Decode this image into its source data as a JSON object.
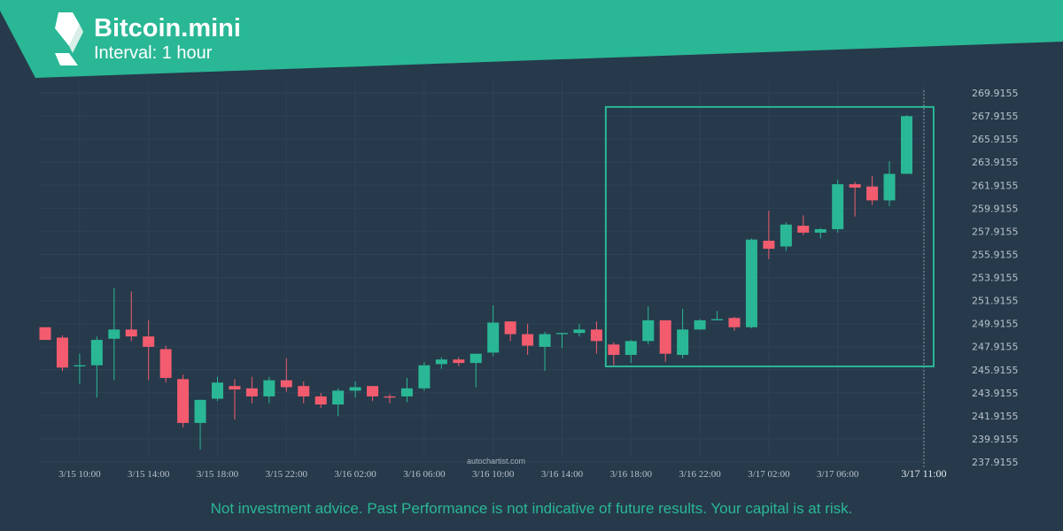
{
  "header": {
    "title": "Bitcoin.mini",
    "interval": "Interval: 1 hour"
  },
  "watermark": "autochartist.com",
  "disclaimer": "Not investment advice. Past Performance is not indicative of future results. Your capital is at risk.",
  "colors": {
    "background": "#263a4b",
    "banner": "#2ab795",
    "up": "#2ab795",
    "down": "#f25c6e",
    "grid": "#2e4456",
    "axis_text": "#b8c2cb",
    "pattern_box": "#2ab795"
  },
  "chart_data": {
    "type": "candlestick",
    "symbol": "Bitcoin.mini",
    "interval": "1 hour",
    "ylim": [
      237.9155,
      269.9155
    ],
    "y_ticks": [
      "269.9155",
      "267.9155",
      "265.9155",
      "263.9155",
      "261.9155",
      "259.9155",
      "257.9155",
      "255.9155",
      "253.9155",
      "251.9155",
      "249.9155",
      "247.9155",
      "245.9155",
      "243.9155",
      "241.9155",
      "239.9155",
      "237.9155"
    ],
    "x_tick_labels": [
      "3/15 10:00",
      "3/15 14:00",
      "3/15 18:00",
      "3/15 22:00",
      "3/16 02:00",
      "3/16 06:00",
      "3/16 10:00",
      "3/16 14:00",
      "3/16 18:00",
      "3/16 22:00",
      "3/17 02:00",
      "3/17 06:00",
      "3/17 11:00"
    ],
    "x_tick_indices": [
      2,
      6,
      10,
      14,
      18,
      22,
      26,
      30,
      34,
      38,
      42,
      46,
      51
    ],
    "highlight_index": 51,
    "pattern_box": {
      "start_index": 33,
      "end_index": 51,
      "price_top": 268.7,
      "price_bottom": 246.2
    },
    "candles": [
      {
        "o": 249.6,
        "h": 249.6,
        "l": 248.5,
        "c": 248.5
      },
      {
        "o": 248.7,
        "h": 248.9,
        "l": 245.8,
        "c": 246.1
      },
      {
        "o": 246.2,
        "h": 247.3,
        "l": 244.7,
        "c": 246.3
      },
      {
        "o": 246.3,
        "h": 248.8,
        "l": 243.5,
        "c": 248.5
      },
      {
        "o": 248.6,
        "h": 253.0,
        "l": 245.0,
        "c": 249.4
      },
      {
        "o": 249.4,
        "h": 252.7,
        "l": 248.4,
        "c": 248.8
      },
      {
        "o": 248.8,
        "h": 250.2,
        "l": 245.0,
        "c": 247.9
      },
      {
        "o": 247.7,
        "h": 248.0,
        "l": 244.8,
        "c": 245.2
      },
      {
        "o": 245.1,
        "h": 245.5,
        "l": 240.9,
        "c": 241.3
      },
      {
        "o": 241.3,
        "h": 243.3,
        "l": 239.0,
        "c": 243.3
      },
      {
        "o": 243.4,
        "h": 245.3,
        "l": 243.2,
        "c": 244.8
      },
      {
        "o": 244.5,
        "h": 245.1,
        "l": 241.6,
        "c": 244.2
      },
      {
        "o": 244.3,
        "h": 245.3,
        "l": 243.0,
        "c": 243.6
      },
      {
        "o": 243.6,
        "h": 245.3,
        "l": 243.0,
        "c": 245.0
      },
      {
        "o": 245.0,
        "h": 246.9,
        "l": 244.0,
        "c": 244.4
      },
      {
        "o": 244.5,
        "h": 244.9,
        "l": 243.0,
        "c": 243.6
      },
      {
        "o": 243.6,
        "h": 243.9,
        "l": 242.6,
        "c": 242.9
      },
      {
        "o": 242.9,
        "h": 244.3,
        "l": 241.9,
        "c": 244.1
      },
      {
        "o": 244.1,
        "h": 244.9,
        "l": 243.5,
        "c": 244.4
      },
      {
        "o": 244.5,
        "h": 244.5,
        "l": 243.2,
        "c": 243.6
      },
      {
        "o": 243.6,
        "h": 243.8,
        "l": 243.0,
        "c": 243.5
      },
      {
        "o": 243.6,
        "h": 245.2,
        "l": 243.1,
        "c": 244.3
      },
      {
        "o": 244.3,
        "h": 246.6,
        "l": 244.1,
        "c": 246.3
      },
      {
        "o": 246.4,
        "h": 247.0,
        "l": 246.0,
        "c": 246.8
      },
      {
        "o": 246.8,
        "h": 247.0,
        "l": 246.2,
        "c": 246.5
      },
      {
        "o": 246.5,
        "h": 247.3,
        "l": 244.4,
        "c": 247.3
      },
      {
        "o": 247.4,
        "h": 251.5,
        "l": 247.1,
        "c": 250.0
      },
      {
        "o": 250.1,
        "h": 250.1,
        "l": 248.4,
        "c": 249.0
      },
      {
        "o": 249.0,
        "h": 249.9,
        "l": 247.2,
        "c": 248.0
      },
      {
        "o": 247.9,
        "h": 249.2,
        "l": 245.8,
        "c": 249.0
      },
      {
        "o": 249.0,
        "h": 249.1,
        "l": 247.8,
        "c": 249.1
      },
      {
        "o": 249.1,
        "h": 249.9,
        "l": 248.8,
        "c": 249.4
      },
      {
        "o": 249.4,
        "h": 250.1,
        "l": 247.3,
        "c": 248.4
      },
      {
        "o": 248.1,
        "h": 248.3,
        "l": 246.3,
        "c": 247.2
      },
      {
        "o": 247.2,
        "h": 248.5,
        "l": 246.5,
        "c": 248.4
      },
      {
        "o": 248.4,
        "h": 251.4,
        "l": 248.1,
        "c": 250.2
      },
      {
        "o": 250.2,
        "h": 250.2,
        "l": 246.6,
        "c": 247.3
      },
      {
        "o": 247.2,
        "h": 251.2,
        "l": 246.9,
        "c": 249.4
      },
      {
        "o": 249.4,
        "h": 250.3,
        "l": 249.4,
        "c": 250.2
      },
      {
        "o": 250.2,
        "h": 251.0,
        "l": 250.2,
        "c": 250.3
      },
      {
        "o": 250.4,
        "h": 250.5,
        "l": 249.3,
        "c": 249.6
      },
      {
        "o": 249.6,
        "h": 257.3,
        "l": 249.5,
        "c": 257.2
      },
      {
        "o": 257.1,
        "h": 259.7,
        "l": 255.5,
        "c": 256.4
      },
      {
        "o": 256.6,
        "h": 258.7,
        "l": 256.2,
        "c": 258.5
      },
      {
        "o": 258.4,
        "h": 259.3,
        "l": 257.6,
        "c": 257.8
      },
      {
        "o": 257.8,
        "h": 258.2,
        "l": 257.3,
        "c": 258.1
      },
      {
        "o": 258.1,
        "h": 262.4,
        "l": 257.8,
        "c": 262.0
      },
      {
        "o": 262.0,
        "h": 262.2,
        "l": 259.2,
        "c": 261.7
      },
      {
        "o": 261.8,
        "h": 262.7,
        "l": 260.2,
        "c": 260.6
      },
      {
        "o": 260.6,
        "h": 264.0,
        "l": 260.1,
        "c": 262.9
      },
      {
        "o": 262.9,
        "h": 268.0,
        "l": 262.9,
        "c": 267.9
      }
    ]
  }
}
